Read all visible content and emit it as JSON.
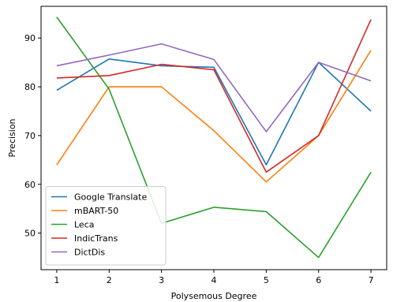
{
  "chart_data": {
    "type": "line",
    "title": "",
    "xlabel": "Polysemous Degree",
    "ylabel": "Precision",
    "x": [
      1,
      2,
      3,
      4,
      5,
      6,
      7
    ],
    "x_ticks": [
      "1",
      "2",
      "3",
      "4",
      "5",
      "6",
      "7"
    ],
    "y_ticks": [
      "50",
      "60",
      "70",
      "80",
      "90"
    ],
    "xlim": [
      0.7,
      7.3
    ],
    "ylim": [
      42.5,
      96.5
    ],
    "grid": false,
    "legend_position": "lower-left",
    "series": [
      {
        "name": "Google Translate",
        "color": "#1f77b4",
        "values": [
          79.3,
          85.7,
          84.3,
          84.0,
          64.0,
          85.0,
          75.0
        ]
      },
      {
        "name": "mBART-50",
        "color": "#ff7f0e",
        "values": [
          64.0,
          80.0,
          80.0,
          71.0,
          60.5,
          70.0,
          87.5
        ]
      },
      {
        "name": "Leca",
        "color": "#2ca02c",
        "values": [
          94.3,
          79.5,
          52.0,
          55.3,
          54.4,
          45.0,
          62.5
        ]
      },
      {
        "name": "IndicTrans",
        "color": "#d62728",
        "values": [
          81.8,
          82.3,
          84.6,
          83.5,
          62.5,
          70.0,
          93.8
        ]
      },
      {
        "name": "DictDis",
        "color": "#9467bd",
        "values": [
          84.3,
          86.5,
          88.8,
          85.6,
          70.8,
          85.0,
          81.2
        ]
      }
    ]
  }
}
